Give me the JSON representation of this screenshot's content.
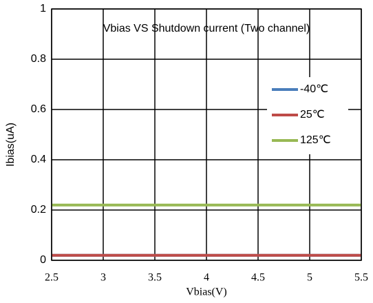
{
  "chart_data": {
    "type": "line",
    "title": "Vbias VS Shutdown current (Two channel)",
    "x_label": "Vbias(V)",
    "y_label": "Ibias(uA)",
    "x": [
      2.5,
      5.5
    ],
    "series": [
      {
        "name": "-40℃",
        "color": "#4a7ebb",
        "values": [
          0.02,
          0.02
        ]
      },
      {
        "name": "25℃",
        "color": "#be4b48",
        "values": [
          0.02,
          0.02
        ]
      },
      {
        "name": "125℃",
        "color": "#98b954",
        "values": [
          0.22,
          0.22
        ]
      }
    ],
    "xlim": [
      2.5,
      5.5
    ],
    "xticks": [
      2.5,
      3,
      3.5,
      4,
      4.5,
      5,
      5.5
    ],
    "ylim": [
      0,
      1
    ],
    "yticks": [
      0,
      0.2,
      0.4,
      0.6,
      0.8,
      1
    ],
    "grid": true,
    "legend": "right"
  }
}
